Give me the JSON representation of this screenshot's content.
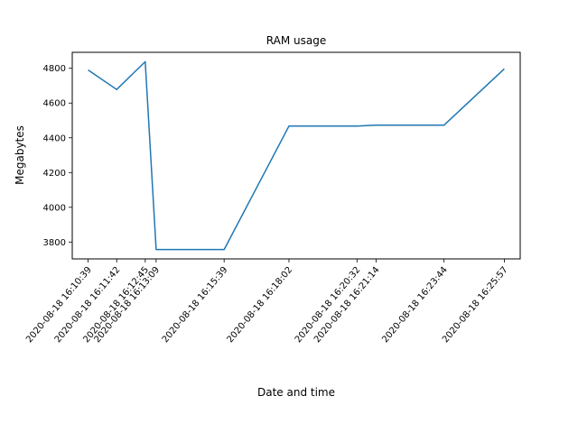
{
  "chart_data": {
    "type": "line",
    "title": "RAM usage",
    "xlabel": "Date and time",
    "ylabel": "Megabytes",
    "x": [
      "2020-08-18 16:10:39",
      "2020-08-18 16:11:42",
      "2020-08-18 16:12:45",
      "2020-08-18 16:13:09",
      "2020-08-18 16:15:39",
      "2020-08-18 16:18:02",
      "2020-08-18 16:20:32",
      "2020-08-18 16:21:14",
      "2020-08-18 16:23:44",
      "2020-08-18 16:25:57"
    ],
    "series": [
      {
        "values": [
          4790,
          4678,
          4838,
          3757,
          3757,
          4468,
          4468,
          4473,
          4473,
          4797
        ]
      }
    ],
    "yticks": [
      3800,
      4000,
      4200,
      4400,
      4600,
      4800
    ],
    "ylim": [
      3703,
      4892
    ],
    "xlim": [
      "2020-08-18 16:10:04",
      "2020-08-18 16:26:32"
    ],
    "grid": false,
    "color": "#1f77b4"
  }
}
